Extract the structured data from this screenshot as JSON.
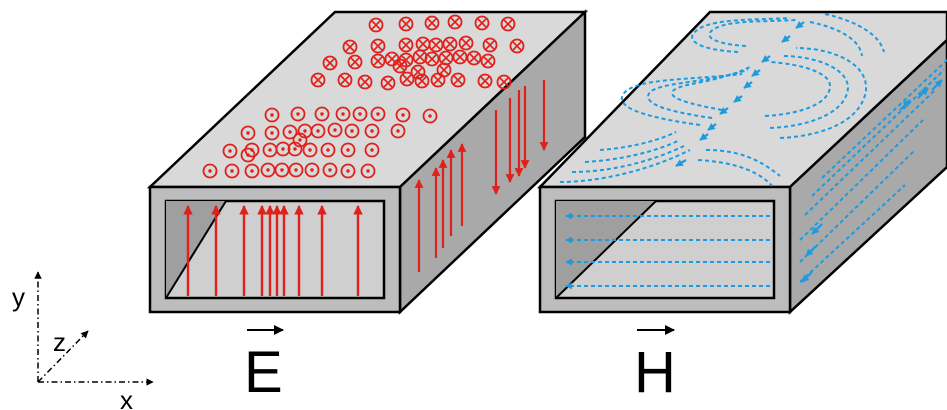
{
  "figure": {
    "left_field_symbol": "E",
    "right_field_symbol": "H"
  },
  "axes": {
    "x": "x",
    "y": "y",
    "z": "z"
  },
  "colors": {
    "metal_top": "#d9d9d9",
    "metal_front": "#bdbdbd",
    "metal_side": "#a9a9a9",
    "inner": "#cfcfcf",
    "e_field": "#e0201b",
    "h_field": "#1d9be0",
    "outline": "#000000"
  },
  "icons": {
    "into_page": "circle-cross-symbol",
    "out_of_page": "circle-dot-symbol"
  }
}
